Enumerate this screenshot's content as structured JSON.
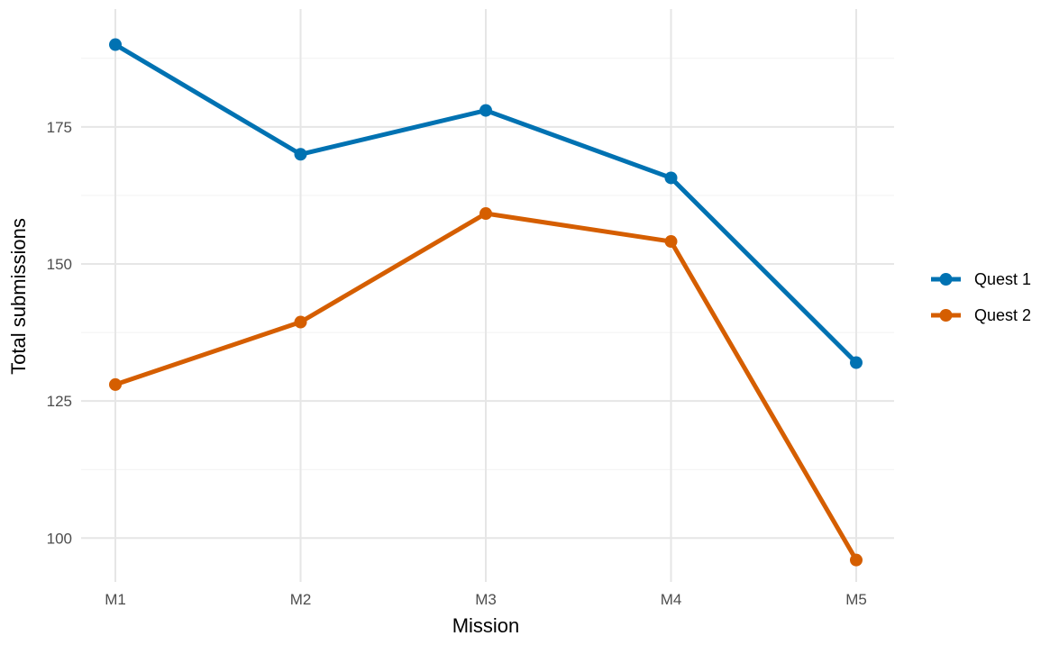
{
  "chart_data": {
    "type": "line",
    "title": "",
    "xlabel": "Mission",
    "ylabel": "Total submissions",
    "categories": [
      "M1",
      "M2",
      "M3",
      "M4",
      "M5"
    ],
    "series": [
      {
        "name": "Quest 1",
        "color": "#0072B2",
        "values": [
          190,
          170,
          178,
          165.7,
          132
        ]
      },
      {
        "name": "Quest 2",
        "color": "#D55E00",
        "values": [
          128,
          139.4,
          159.2,
          154.1,
          96
        ]
      }
    ],
    "ylim": [
      92,
      196.5
    ],
    "yticks": [
      100,
      125,
      150,
      175
    ],
    "grid": true,
    "legend_position": "right"
  }
}
